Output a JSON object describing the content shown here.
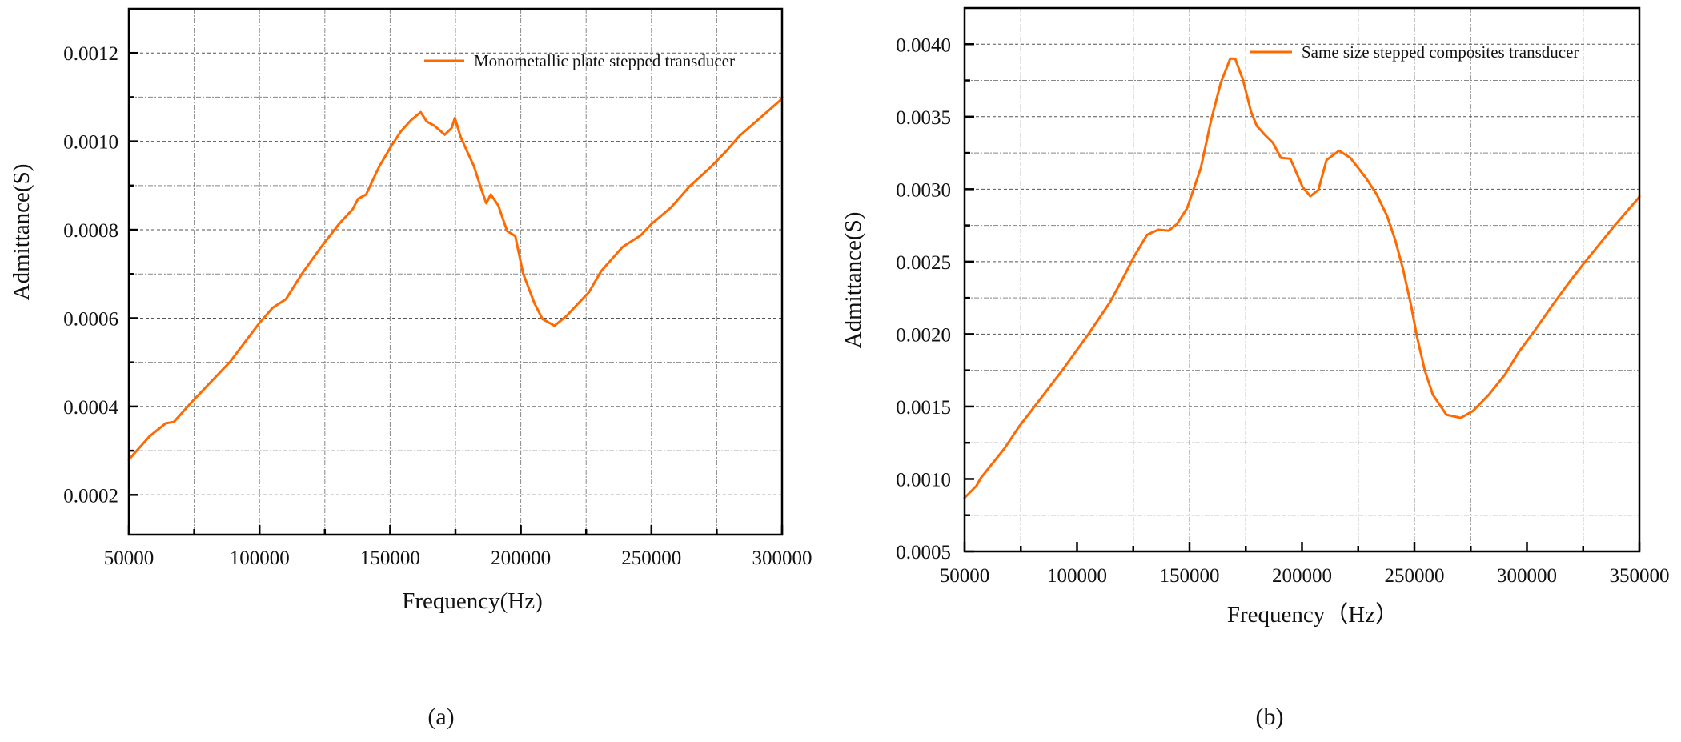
{
  "figure": {
    "captions": [
      "(a)",
      "(b)"
    ]
  },
  "chart_data": [
    {
      "type": "line",
      "panel": "(a)",
      "title": "",
      "xlabel": "Frequency(Hz)",
      "ylabel": "Admittance(S)",
      "xlim": [
        50000,
        300000
      ],
      "ylim": [
        0.00011,
        0.0013
      ],
      "x_ticks": [
        50000,
        100000,
        150000,
        200000,
        250000,
        300000
      ],
      "x_tick_labels": [
        "50000",
        "100000",
        "150000",
        "200000",
        "250000",
        "300000"
      ],
      "x_minor_step": 25000,
      "y_ticks": [
        0.0002,
        0.0004,
        0.0006,
        0.0008,
        0.001,
        0.0012
      ],
      "y_tick_labels": [
        "0.0002",
        "0.0004",
        "0.0006",
        "0.0008",
        "0.0010",
        "0.0012"
      ],
      "y_minor_step": 0.0001,
      "grid": true,
      "legend_position": "upper right",
      "series": [
        {
          "name": "Monometallic plate stepped transducer",
          "color": "#FF6A00",
          "x": [
            50000,
            58000,
            64100,
            67200,
            74200,
            88700,
            99700,
            104900,
            110100,
            116300,
            123300,
            130400,
            135600,
            137700,
            140800,
            145700,
            150000,
            154000,
            158000,
            161700,
            164000,
            167000,
            170900,
            173500,
            174800,
            177000,
            179400,
            182000,
            184700,
            186800,
            188500,
            191400,
            194800,
            197900,
            200900,
            205200,
            208300,
            212900,
            217500,
            222100,
            226100,
            230700,
            238900,
            246000,
            250000,
            257400,
            264400,
            272700,
            278800,
            283800,
            292000,
            299700,
            300000
          ],
          "values": [
            0.00028,
            0.000333,
            0.000362,
            0.000365,
            0.000411,
            0.000501,
            0.000587,
            0.000623,
            0.000643,
            0.000701,
            0.000759,
            0.000813,
            0.000846,
            0.00087,
            0.00088,
            0.000942,
            0.000985,
            0.001022,
            0.001048,
            0.001066,
            0.001045,
            0.001035,
            0.001015,
            0.00103,
            0.001053,
            0.00101,
            0.000978,
            0.000945,
            0.000895,
            0.00086,
            0.00088,
            0.000855,
            0.000797,
            0.000786,
            0.000701,
            0.000634,
            0.000598,
            0.000583,
            0.000605,
            0.000634,
            0.000659,
            0.000706,
            0.000761,
            0.000788,
            0.000813,
            0.00085,
            0.000897,
            0.000942,
            0.000979,
            0.001013,
            0.001055,
            0.001095,
            0.0011
          ]
        }
      ]
    },
    {
      "type": "line",
      "panel": "(b)",
      "title": "",
      "xlabel": "Frequency（Hz）",
      "ylabel": "Admittance(S)",
      "xlim": [
        50000,
        350000
      ],
      "ylim": [
        0.0005,
        0.00425
      ],
      "x_ticks": [
        50000,
        100000,
        150000,
        200000,
        250000,
        300000,
        350000
      ],
      "x_tick_labels": [
        "50000",
        "100000",
        "150000",
        "200000",
        "250000",
        "300000",
        "350000"
      ],
      "x_minor_step": 25000,
      "y_ticks": [
        0.0005,
        0.001,
        0.0015,
        0.002,
        0.0025,
        0.003,
        0.0035,
        0.004
      ],
      "y_tick_labels": [
        "0.0005",
        "0.0010",
        "0.0015",
        "0.0020",
        "0.0025",
        "0.0030",
        "0.0035",
        "0.0040"
      ],
      "y_minor_step": 0.00025,
      "grid": true,
      "legend_position": "upper right",
      "series": [
        {
          "name": "Same size stepped composites transducer",
          "color": "#FF6A00",
          "x": [
            50000,
            55300,
            57100,
            67800,
            74200,
            83800,
            93400,
            105200,
            114800,
            120500,
            125400,
            131100,
            133600,
            136100,
            140700,
            144300,
            148900,
            155000,
            159600,
            163900,
            168100,
            170300,
            173800,
            177400,
            179900,
            183400,
            187000,
            190600,
            194800,
            200200,
            203700,
            207300,
            210900,
            216500,
            221500,
            228600,
            233300,
            237900,
            241500,
            245000,
            248600,
            251100,
            254600,
            258200,
            264200,
            270600,
            276000,
            283100,
            290200,
            296300,
            303400,
            311600,
            318700,
            325000,
            338900,
            349600,
            350000
          ],
          "values": [
            0.00087,
            0.000953,
            0.001005,
            0.001212,
            0.001361,
            0.001555,
            0.00175,
            0.002003,
            0.002224,
            0.002388,
            0.002537,
            0.002685,
            0.002703,
            0.00272,
            0.002714,
            0.002758,
            0.002868,
            0.003144,
            0.003476,
            0.003735,
            0.003901,
            0.0039,
            0.003752,
            0.003531,
            0.003437,
            0.003376,
            0.003321,
            0.003216,
            0.00321,
            0.003017,
            0.002951,
            0.002995,
            0.0032,
            0.003266,
            0.003216,
            0.003073,
            0.002962,
            0.002813,
            0.002647,
            0.002443,
            0.00219,
            0.001985,
            0.00175,
            0.001582,
            0.001444,
            0.001422,
            0.00147,
            0.001582,
            0.00172,
            0.001874,
            0.002023,
            0.002205,
            0.002355,
            0.002482,
            0.002747,
            0.00294,
            0.00295
          ]
        }
      ]
    }
  ]
}
